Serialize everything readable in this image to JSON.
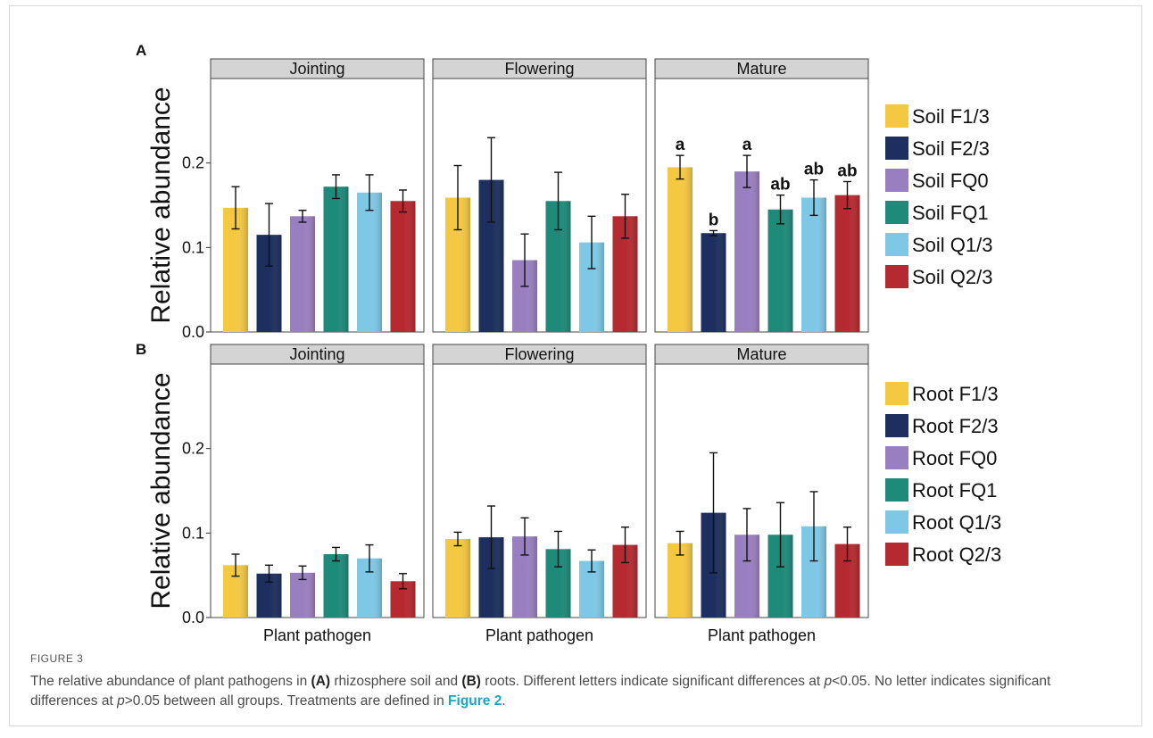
{
  "caption": {
    "figure_label": "FIGURE 3",
    "t1": "The relative abundance of plant pathogens in ",
    "b1": "(A)",
    "t2": " rhizosphere soil and ",
    "b2": "(B)",
    "t3": " roots. Different letters indicate significant differences at ",
    "p1": "p",
    "t4": "<0.05. No letter indicates significant differences at ",
    "p2": "p",
    "t5": ">0.05 between all groups. Treatments are defined in ",
    "link": "Figure 2",
    "t6": "."
  },
  "chart_data": [
    {
      "type": "bar",
      "panel": "A",
      "ylabel": "Relative abundance",
      "ylim": [
        0,
        0.3
      ],
      "yticks": [
        "0.0",
        "0.1",
        "0.2"
      ],
      "xlabel": "",
      "facets": [
        "Jointing",
        "Flowering",
        "Mature"
      ],
      "series": [
        {
          "name": "Soil F1/3",
          "color": "#f5c842",
          "values": [
            0.147,
            0.159,
            0.195
          ],
          "errors": [
            0.025,
            0.038,
            0.014
          ]
        },
        {
          "name": "Soil F2/3",
          "color": "#1c2f5e",
          "values": [
            0.115,
            0.18,
            0.117
          ],
          "errors": [
            0.037,
            0.05,
            0.003
          ]
        },
        {
          "name": "Soil FQ0",
          "color": "#9a7fc0",
          "values": [
            0.137,
            0.085,
            0.19
          ],
          "errors": [
            0.007,
            0.031,
            0.019
          ]
        },
        {
          "name": "Soil FQ1",
          "color": "#1e8a7a",
          "values": [
            0.172,
            0.155,
            0.145
          ],
          "errors": [
            0.014,
            0.034,
            0.017
          ]
        },
        {
          "name": "Soil Q1/3",
          "color": "#7ec8e6",
          "values": [
            0.165,
            0.106,
            0.159
          ],
          "errors": [
            0.021,
            0.031,
            0.021
          ]
        },
        {
          "name": "Soil Q2/3",
          "color": "#b52a30",
          "values": [
            0.155,
            0.137,
            0.162
          ],
          "errors": [
            0.013,
            0.026,
            0.016
          ]
        }
      ],
      "annotations": {
        "facet": "Mature",
        "labels": [
          "a",
          "b",
          "a",
          "ab",
          "ab",
          "ab"
        ]
      }
    },
    {
      "type": "bar",
      "panel": "B",
      "ylabel": "Relative abundance",
      "ylim": [
        0,
        0.3
      ],
      "yticks": [
        "0.0",
        "0.1",
        "0.2"
      ],
      "xlabel": "Plant pathogen",
      "facets": [
        "Jointing",
        "Flowering",
        "Mature"
      ],
      "series": [
        {
          "name": "Root F1/3",
          "color": "#f5c842",
          "values": [
            0.062,
            0.093,
            0.088
          ],
          "errors": [
            0.013,
            0.008,
            0.014
          ]
        },
        {
          "name": "Root F2/3",
          "color": "#1c2f5e",
          "values": [
            0.052,
            0.095,
            0.124
          ],
          "errors": [
            0.01,
            0.037,
            0.071
          ]
        },
        {
          "name": "Root FQ0",
          "color": "#9a7fc0",
          "values": [
            0.053,
            0.096,
            0.098
          ],
          "errors": [
            0.008,
            0.022,
            0.031
          ]
        },
        {
          "name": "Root FQ1",
          "color": "#1e8a7a",
          "values": [
            0.075,
            0.081,
            0.098
          ],
          "errors": [
            0.008,
            0.021,
            0.038
          ]
        },
        {
          "name": "Root Q1/3",
          "color": "#7ec8e6",
          "values": [
            0.07,
            0.067,
            0.108
          ],
          "errors": [
            0.016,
            0.013,
            0.041
          ]
        },
        {
          "name": "Root Q2/3",
          "color": "#b52a30",
          "values": [
            0.043,
            0.086,
            0.087
          ],
          "errors": [
            0.009,
            0.021,
            0.02
          ]
        }
      ]
    }
  ]
}
